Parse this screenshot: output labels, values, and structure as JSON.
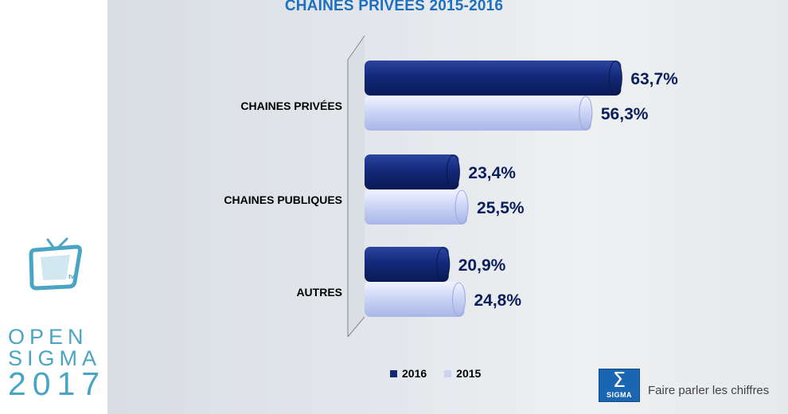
{
  "colors": {
    "series_2016": "#112a73",
    "series_2015": "#c9d3f5",
    "title": "#1f6fc0",
    "value_text": "#0b1e5c",
    "brand": "#4aa5c4"
  },
  "chart_data": {
    "type": "bar",
    "orientation": "horizontal",
    "title": "CHAINES PRIVEES 2015-2016",
    "categories": [
      "CHAINES PRIVÉES",
      "CHAINES PUBLIQUES",
      "AUTRES"
    ],
    "series": [
      {
        "name": "2016",
        "values": [
          63.7,
          23.4,
          20.9
        ],
        "labels": [
          "63,7%",
          "23,4%",
          "20,9%"
        ]
      },
      {
        "name": "2015",
        "values": [
          56.3,
          25.5,
          24.8
        ],
        "labels": [
          "56,3%",
          "25,5%",
          "24,8%"
        ]
      }
    ],
    "xlim": [
      0,
      100
    ],
    "grid": false,
    "legend_position": "bottom"
  },
  "branding": {
    "event_line1": "OPEN",
    "event_line2": "SIGMA",
    "event_year": "2017",
    "tv_icon_text": "tv",
    "sigma_logo_text": "SIGMA",
    "tagline": "Faire parler les chiffres",
    "tv_icon": "tv-icon",
    "sigma_icon": "sigma-logo-icon"
  }
}
